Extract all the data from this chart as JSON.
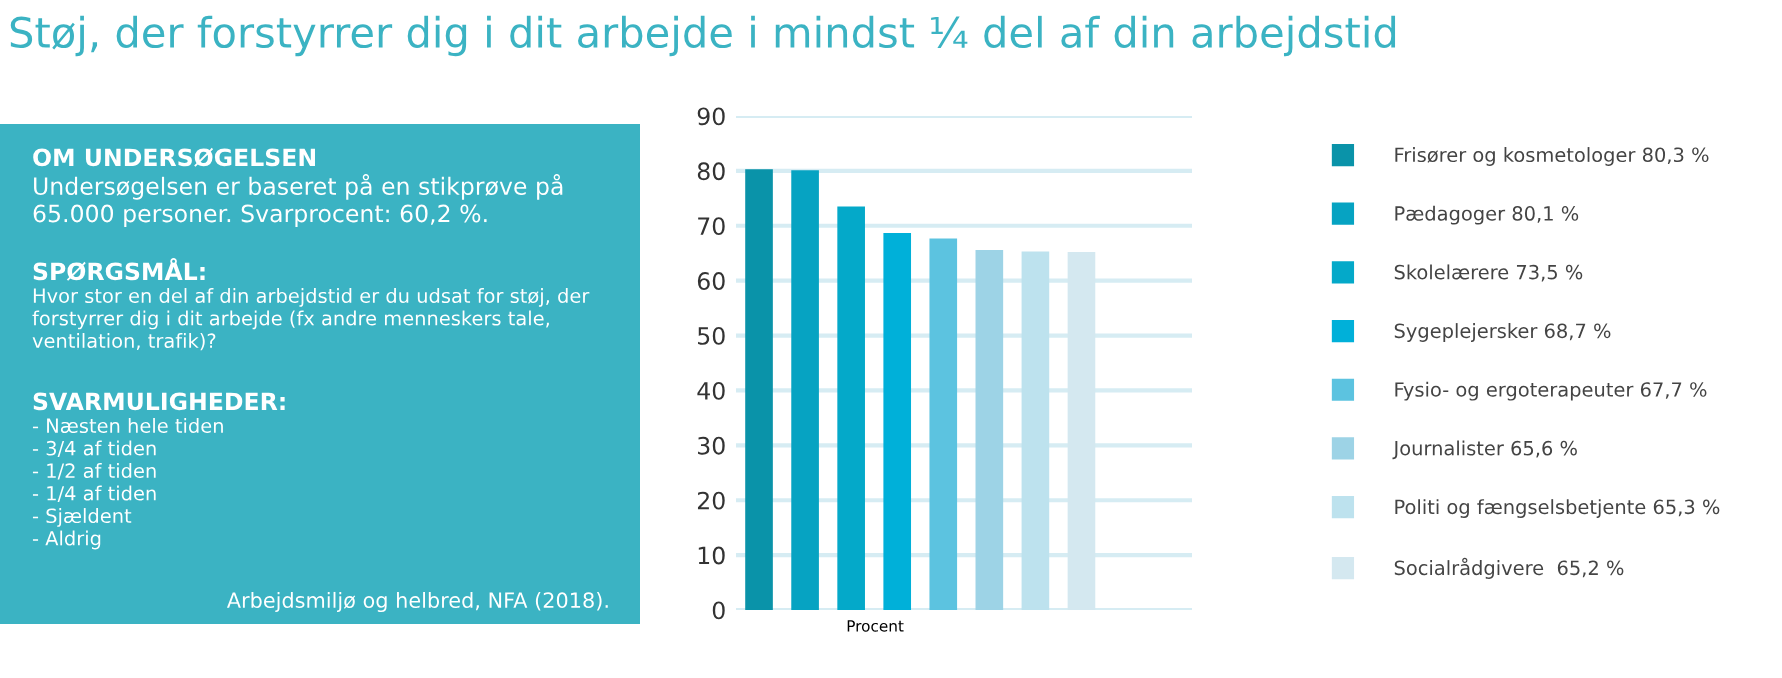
{
  "chart_data": {
    "type": "bar",
    "title": "Støj, der forstyrrer dig i dit arbejde i mindst ¼ del af din arbejdstid",
    "xlabel": "Procent",
    "categories": [
      null,
      null,
      null,
      null,
      null,
      null,
      null,
      null
    ],
    "series": [
      {
        "name": "Frisører og kosmetologer 80,3 %",
        "color": "#0a93a9",
        "values": [
          80.3,
          null,
          null,
          null,
          null,
          null,
          null,
          null
        ]
      },
      {
        "name": "Pædagoger 80,1 %",
        "color": "#06a3c2",
        "values": [
          null,
          80.1,
          null,
          null,
          null,
          null,
          null,
          null
        ]
      },
      {
        "name": "Skolelærere 73,5 %",
        "color": "#04a9c9",
        "values": [
          null,
          null,
          73.5,
          null,
          null,
          null,
          null,
          null
        ]
      },
      {
        "name": "Sygeplejersker 68,7 %",
        "color": "#00b0d9",
        "values": [
          null,
          null,
          null,
          68.7,
          null,
          null,
          null,
          null
        ]
      },
      {
        "name": "Fysio- og ergoterapeuter 67,7 %",
        "color": "#5cc3e0",
        "values": [
          null,
          null,
          null,
          null,
          67.7,
          null,
          null,
          null
        ]
      },
      {
        "name": "Journalister 65,6 %",
        "color": "#9dd3e6",
        "values": [
          null,
          null,
          null,
          null,
          null,
          65.6,
          null,
          null
        ]
      },
      {
        "name": "Politi og fængselsbetjente 65,3 %",
        "color": "#bde2ee",
        "values": [
          null,
          null,
          null,
          null,
          null,
          null,
          65.3,
          null
        ]
      },
      {
        "name": "Socialrådgivere  65,2 %",
        "color": "#d4e8f0",
        "values": [
          null,
          null,
          null,
          null,
          null,
          null,
          null,
          65.2
        ]
      }
    ],
    "stacked": true,
    "ylim": [
      0,
      90
    ],
    "yticks": [
      0,
      10,
      20,
      30,
      40,
      50,
      60,
      70,
      80,
      90
    ],
    "grid": "y",
    "legend": "right",
    "annotations": [
      "OM UNDERSØGELSEN",
      "Undersøgelsen er baseret på en stikprøve på\n65.000 personer. Svarprocent: 60,2 %.",
      "SPØRGSMÅL:",
      "Hvor stor en del af din arbejdstid er du udsat for støj, der\nforstyrrer dig i dit arbejde (fx andre menneskers tale,\nventilation, trafik)?",
      "SVARMULIGHEDER:",
      "- Næsten hele tiden\n- 3/4 af tiden\n- 1/2 af tiden\n- 1/4 af tiden\n- Sjældent\n- Aldrig",
      "Arbejdsmiljø og helbred, NFA (2018)."
    ]
  }
}
